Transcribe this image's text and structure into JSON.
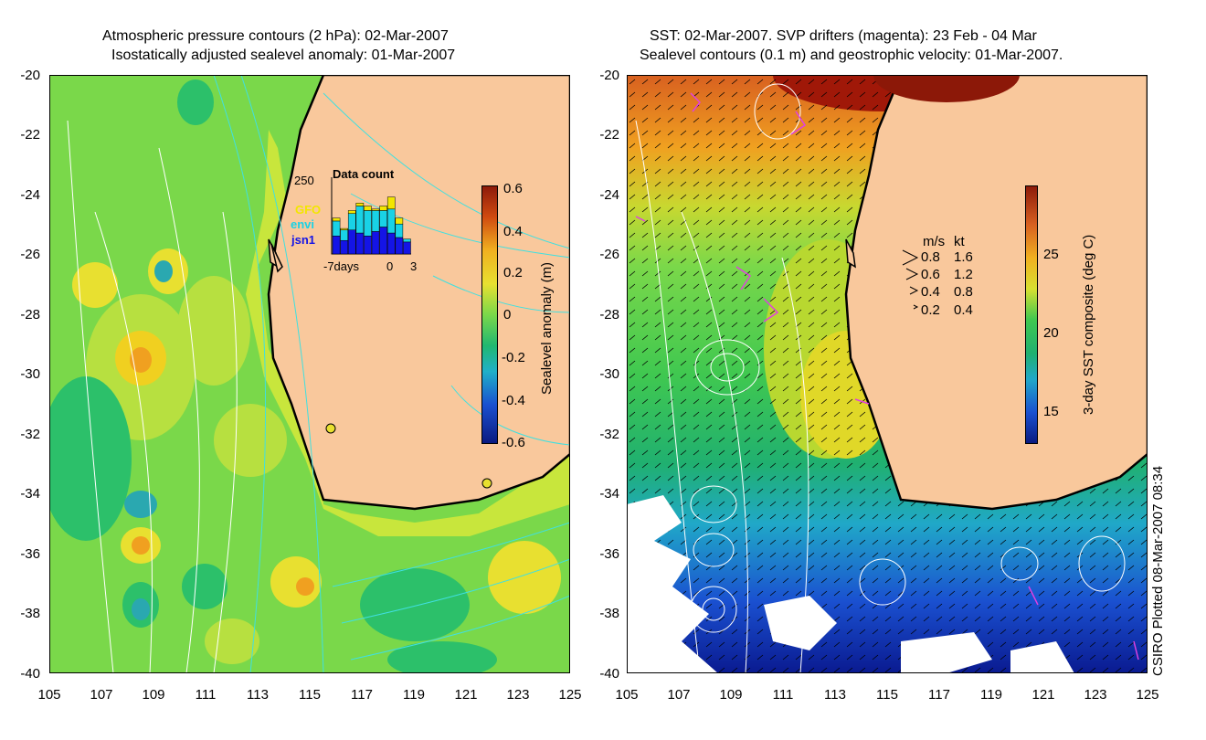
{
  "left_panel": {
    "title_line1": "Atmospheric pressure contours (2 hPa): 02-Mar-2007",
    "title_line2": "Isostatically adjusted sealevel anomaly: 01-Mar-2007",
    "y_ticks": [
      "-20",
      "-22",
      "-24",
      "-26",
      "-28",
      "-30",
      "-32",
      "-34",
      "-36",
      "-38",
      "-40"
    ],
    "x_ticks": [
      "105",
      "107",
      "109",
      "111",
      "113",
      "115",
      "117",
      "119",
      "121",
      "123",
      "125"
    ],
    "colorbar": {
      "label": "Sealevel anomaly (m)",
      "ticks": [
        "0.6",
        "0.4",
        "0.2",
        "0",
        "-0.2",
        "-0.4",
        "-0.6"
      ],
      "range": [
        -0.6,
        0.6
      ]
    },
    "data_count": {
      "title": "Data count",
      "max_label": "250",
      "x_left": "-7days",
      "x_zero": "0",
      "x_right": "3",
      "legend": [
        "GFO",
        "envi",
        "jsn1"
      ],
      "legend_colors": [
        "#f2e600",
        "#19d2e6",
        "#1414e6"
      ],
      "bars": [
        {
          "jsn1": 60,
          "envi": 50,
          "gfo": 10
        },
        {
          "jsn1": 45,
          "envi": 35,
          "gfo": 5
        },
        {
          "jsn1": 80,
          "envi": 55,
          "gfo": 10
        },
        {
          "jsn1": 70,
          "envi": 90,
          "gfo": 10
        },
        {
          "jsn1": 60,
          "envi": 85,
          "gfo": 15
        },
        {
          "jsn1": 75,
          "envi": 70,
          "gfo": 5
        },
        {
          "jsn1": 90,
          "envi": 55,
          "gfo": 15
        },
        {
          "jsn1": 70,
          "envi": 80,
          "gfo": 40
        },
        {
          "jsn1": 55,
          "envi": 45,
          "gfo": 20
        },
        {
          "jsn1": 40,
          "envi": 10,
          "gfo": 0
        }
      ],
      "ymax": 250
    }
  },
  "right_panel": {
    "title_line1": "SST: 02-Mar-2007. SVP drifters (magenta): 23 Feb - 04 Mar",
    "title_line2": "Sealevel contours (0.1 m) and geostrophic velocity: 01-Mar-2007.",
    "y_ticks": [
      "-20",
      "-22",
      "-24",
      "-26",
      "-28",
      "-30",
      "-32",
      "-34",
      "-36",
      "-38",
      "-40"
    ],
    "x_ticks": [
      "105",
      "107",
      "109",
      "111",
      "113",
      "115",
      "117",
      "119",
      "121",
      "123",
      "125"
    ],
    "colorbar": {
      "label": "3-day SST composite (deg C)",
      "ticks": [
        "25",
        "20",
        "15"
      ],
      "range": [
        12.5,
        29
      ]
    },
    "velocity_legend": {
      "header_ms": "m/s",
      "header_kt": "kt",
      "rows": [
        {
          "ms": "0.8",
          "kt": "1.6"
        },
        {
          "ms": "0.6",
          "kt": "1.2"
        },
        {
          "ms": "0.4",
          "kt": "0.8"
        },
        {
          "ms": "0.2",
          "kt": "0.4"
        }
      ]
    }
  },
  "credit": "CSIRO Plotted 08-Mar-2007 08:34",
  "colors": {
    "land": "#f9c89c",
    "coast": "#000000",
    "contour_left_white": "#ffffff",
    "contour_left_cyan": "#40e0e0",
    "drifter": "#e040e0"
  }
}
